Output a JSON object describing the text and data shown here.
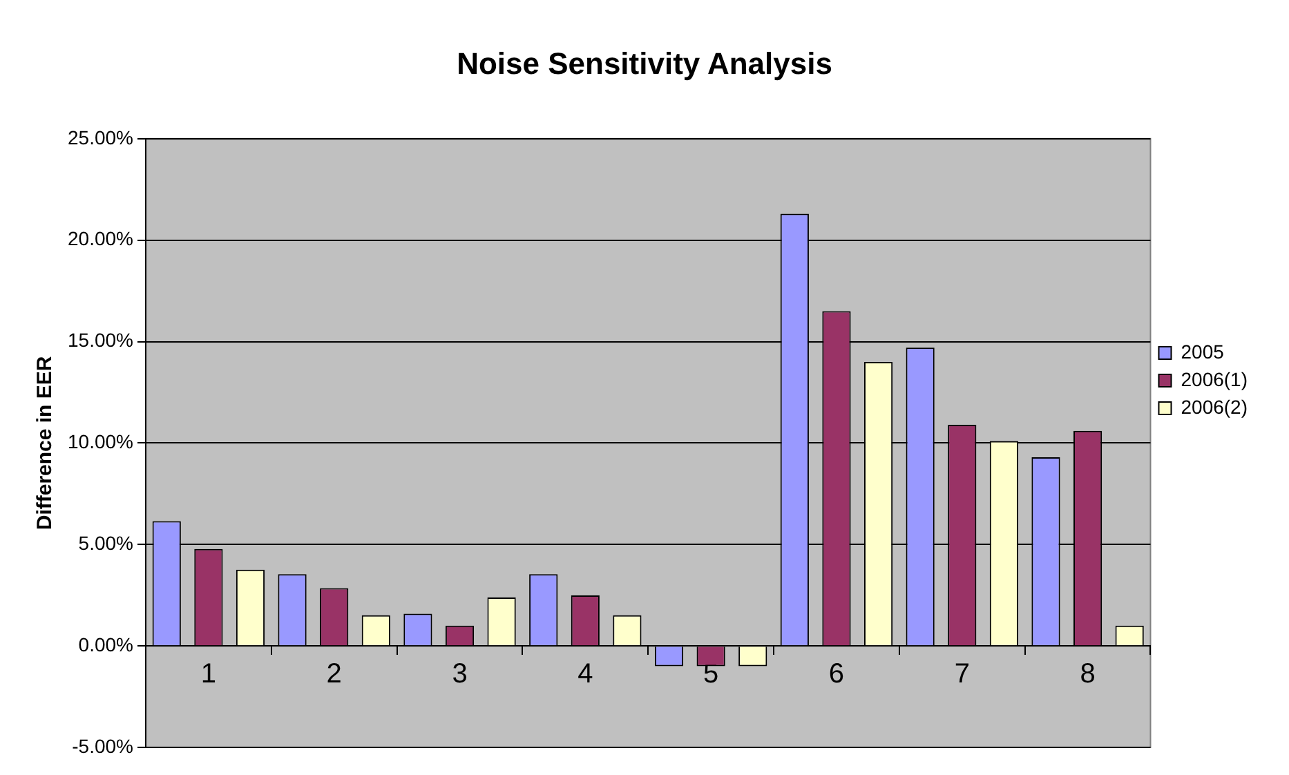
{
  "chart_data": {
    "type": "bar",
    "title": "Noise Sensitivity Analysis",
    "ylabel": "Difference in EER",
    "categories": [
      "1",
      "2",
      "3",
      "4",
      "5",
      "6",
      "7",
      "8"
    ],
    "series": [
      {
        "name": "2005",
        "color": "#9999ff",
        "values": [
          6.15,
          3.54,
          1.59,
          3.54,
          -1.0,
          21.3,
          14.7,
          9.3
        ]
      },
      {
        "name": "2006(1)",
        "color": "#993366",
        "values": [
          4.78,
          2.85,
          1.0,
          2.49,
          -1.0,
          16.5,
          10.9,
          10.6
        ]
      },
      {
        "name": "2006(2)",
        "color": "#ffffcc",
        "values": [
          3.76,
          1.51,
          2.39,
          1.51,
          -1.0,
          14.0,
          10.1,
          1.0
        ]
      }
    ],
    "ylim": [
      -5,
      25
    ],
    "yticks": [
      {
        "value": -5,
        "label": "-5.00%"
      },
      {
        "value": 0,
        "label": "0.00%"
      },
      {
        "value": 5,
        "label": "5.00%"
      },
      {
        "value": 10,
        "label": "10.00%"
      },
      {
        "value": 15,
        "label": "15.00%"
      },
      {
        "value": 20,
        "label": "20.00%"
      },
      {
        "value": 25,
        "label": "25.00%"
      }
    ],
    "grid": "y",
    "legend": "right"
  }
}
